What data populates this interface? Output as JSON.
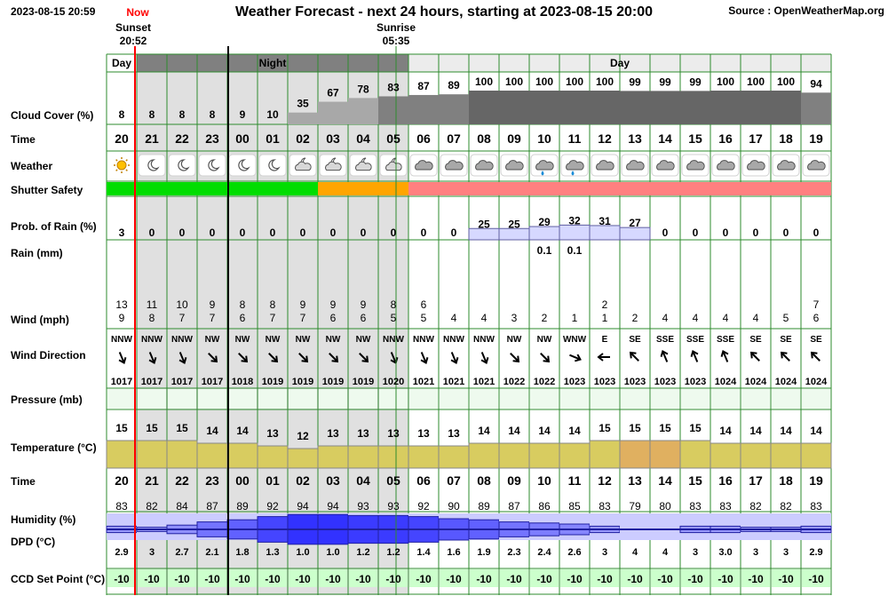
{
  "header": {
    "timestamp": "2023-08-15 20:59",
    "title": "Weather Forecast - next 24 hours, starting at 2023-08-15 20:00",
    "source": "Source : OpenWeatherMap.org",
    "now_label": "Now",
    "sunset_label": "Sunset",
    "sunset_time": "20:52",
    "sunrise_label": "Sunrise",
    "sunrise_time": "05:35"
  },
  "periods": [
    {
      "label": "Day",
      "start_hour_index": 0,
      "end_hour_index": 1
    },
    {
      "label": "Night",
      "start_hour_index": 1,
      "end_hour_index": 10
    },
    {
      "label": "Day",
      "start_hour_index": 10,
      "end_hour_index": 24
    }
  ],
  "colors": {
    "grid_line": "#2e8b2e",
    "night_bg": "#e0e0e0",
    "night_header_bg": "#808080",
    "day_header_bg": "#ececec",
    "cloud_bar_light": "#a8a8a8",
    "cloud_bar_dark": "#808080",
    "cloud_bar_darkest": "#666666",
    "shutter_safe": "#00dd00",
    "shutter_caution": "#ffa500",
    "shutter_unsafe": "#ff8080",
    "rain_bar": "#d6d8ff",
    "temp_normal": "#d8cc60",
    "temp_warm": "#e0b060",
    "humidity_bg": "#ccccff",
    "setpoint_bg": "#ccffcc",
    "now_line": "#ff0000",
    "sun_icon": "#ffc000"
  },
  "chart_data": {
    "type": "table",
    "title": "Weather Forecast - next 24 hours, starting at 2023-08-15 20:00",
    "rows": {
      "cloud_cover": "Cloud Cover (%)",
      "time": "Time",
      "weather": "Weather",
      "shutter": "Shutter Safety",
      "rain_prob": "Prob. of Rain (%)",
      "rain": "Rain (mm)",
      "wind": "Wind (mph)",
      "wind_dir": "Wind Direction",
      "pressure": "Pressure (mb)",
      "temperature": "Temperature (°C)",
      "time2": "Time",
      "humidity": "Humidity (%)",
      "dpd": "DPD (°C)",
      "setpoint": "CCD Set Point (°C)"
    },
    "hours": [
      "20",
      "21",
      "22",
      "23",
      "00",
      "01",
      "02",
      "03",
      "04",
      "05",
      "06",
      "07",
      "08",
      "09",
      "10",
      "11",
      "12",
      "13",
      "14",
      "15",
      "16",
      "17",
      "18",
      "19"
    ],
    "cloud_cover": [
      8,
      8,
      8,
      8,
      9,
      10,
      35,
      67,
      78,
      83,
      87,
      89,
      100,
      100,
      100,
      100,
      100,
      99,
      99,
      99,
      100,
      100,
      100,
      94
    ],
    "weather_icons": [
      "sun",
      "moon",
      "moon",
      "moon",
      "moon",
      "moon",
      "moon-cloud",
      "moon-cloud",
      "moon-cloud",
      "moon-cloud",
      "cloud",
      "cloud",
      "cloud",
      "cloud",
      "cloud-rain",
      "cloud-rain",
      "cloud",
      "cloud",
      "cloud",
      "cloud",
      "cloud",
      "cloud",
      "cloud",
      "cloud"
    ],
    "shutter_safety": [
      "safe",
      "safe",
      "safe",
      "safe",
      "safe",
      "safe",
      "safe",
      "caution",
      "caution",
      "caution",
      "unsafe",
      "unsafe",
      "unsafe",
      "unsafe",
      "unsafe",
      "unsafe",
      "unsafe",
      "unsafe",
      "unsafe",
      "unsafe",
      "unsafe",
      "unsafe",
      "unsafe",
      "unsafe"
    ],
    "rain_probability": [
      3,
      0,
      0,
      0,
      0,
      0,
      0,
      0,
      0,
      0,
      0,
      0,
      25,
      25,
      29,
      32,
      31,
      27,
      0,
      0,
      0,
      0,
      0,
      0
    ],
    "rain_mm": [
      "",
      "",
      "",
      "",
      "",
      "",
      "",
      "",
      "",
      "",
      "",
      "",
      "",
      "",
      "0.1",
      "0.1",
      "",
      "",
      "",
      "",
      "",
      "",
      "",
      ""
    ],
    "wind_gust": [
      "13",
      "11",
      "10",
      "9",
      "8",
      "8",
      "9",
      "9",
      "9",
      "8",
      "6",
      "",
      "",
      "",
      "",
      "",
      "2",
      "",
      "",
      "",
      "",
      "",
      "",
      "7"
    ],
    "wind_speed": [
      "9",
      "8",
      "7",
      "7",
      "6",
      "7",
      "7",
      "6",
      "6",
      "5",
      "5",
      "4",
      "4",
      "3",
      "2",
      "1",
      "1",
      "2",
      "4",
      "4",
      "4",
      "4",
      "5",
      "6"
    ],
    "wind_direction": [
      "NNW",
      "NNW",
      "NNW",
      "NW",
      "NW",
      "NW",
      "NW",
      "NW",
      "NW",
      "NNW",
      "NNW",
      "NNW",
      "NNW",
      "NW",
      "NW",
      "WNW",
      "E",
      "SE",
      "SSE",
      "SSE",
      "SSE",
      "SE",
      "SE",
      "SE"
    ],
    "pressure": [
      1017,
      1017,
      1017,
      1017,
      1018,
      1019,
      1019,
      1019,
      1019,
      1020,
      1021,
      1021,
      1021,
      1022,
      1022,
      1023,
      1023,
      1023,
      1023,
      1023,
      1024,
      1024,
      1024,
      1024
    ],
    "temperature": [
      15,
      15,
      15,
      14,
      14,
      13,
      12,
      13,
      13,
      13,
      13,
      13,
      14,
      14,
      14,
      14,
      15,
      15,
      15,
      15,
      14,
      14,
      14,
      14
    ],
    "humidity": [
      83,
      82,
      84,
      87,
      89,
      92,
      94,
      94,
      93,
      93,
      92,
      90,
      89,
      87,
      86,
      85,
      83,
      79,
      80,
      83,
      83,
      82,
      82,
      83
    ],
    "dpd": [
      "2.9",
      "3",
      "2.7",
      "2.1",
      "1.8",
      "1.3",
      "1.0",
      "1.0",
      "1.2",
      "1.2",
      "1.4",
      "1.6",
      "1.9",
      "2.3",
      "2.4",
      "2.6",
      "3",
      "4",
      "4",
      "3",
      "3.0",
      "3",
      "3",
      "2.9"
    ],
    "ccd_set_point": [
      "-10",
      "-10",
      "-10",
      "-10",
      "-10",
      "-10",
      "-10",
      "-10",
      "-10",
      "-10",
      "-10",
      "-10",
      "-10",
      "-10",
      "-10",
      "-10",
      "-10",
      "-10",
      "-10",
      "-10",
      "-10",
      "-10",
      "-10",
      "-10"
    ]
  }
}
